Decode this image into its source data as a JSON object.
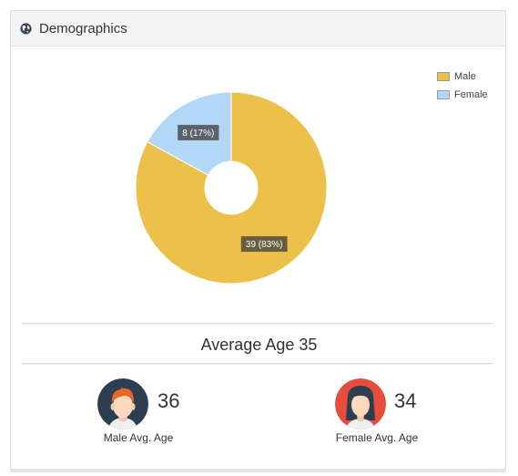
{
  "panel": {
    "title": "Demographics",
    "icon": "globe-icon"
  },
  "chart_data": {
    "type": "pie",
    "donut": true,
    "categories": [
      "Male",
      "Female"
    ],
    "values": [
      39,
      8
    ],
    "labels": [
      "39 (83%)",
      "8 (17%)"
    ],
    "colors": [
      "#EDC04A",
      "#B3D8F7"
    ],
    "legend_position": "top-right"
  },
  "average": {
    "label": "Average Age 35"
  },
  "male": {
    "age": "36",
    "label": "Male Avg. Age",
    "avatar_bg": "#2c3e50",
    "hair": "#e8662a"
  },
  "female": {
    "age": "34",
    "label": "Female Avg. Age",
    "avatar_bg": "#e74c3c",
    "hair": "#2c3e50"
  }
}
